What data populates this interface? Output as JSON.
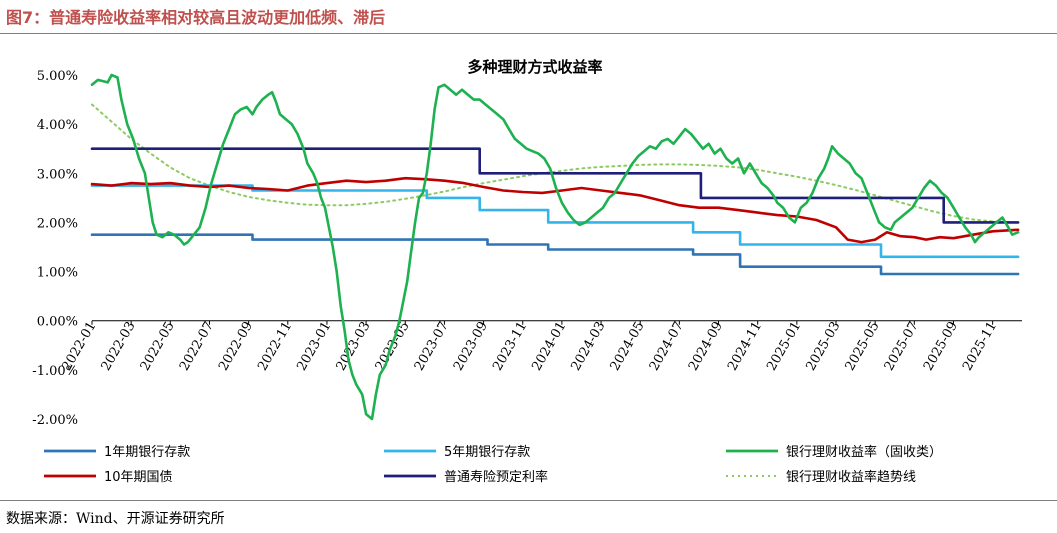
{
  "figure": {
    "title": "图7：普通寿险收益率相对较高且波动更加低频、滞后",
    "source": "数据来源：Wind、开源证券研究所"
  },
  "chart_data": {
    "type": "line",
    "title": "多种理财方式收益率",
    "y_ticks": [
      "5.00%",
      "4.00%",
      "3.00%",
      "2.00%",
      "1.00%",
      "0.00%",
      "-1.00%",
      "-2.00%"
    ],
    "ylim": [
      -2.0,
      5.0
    ],
    "x_ticks": [
      "2022-01",
      "2022-03",
      "2022-05",
      "2022-07",
      "2022-09",
      "2022-11",
      "2023-01",
      "2023-03",
      "2023-05",
      "2023-07",
      "2023-09",
      "2023-11",
      "2024-01",
      "2024-03",
      "2024-05",
      "2024-07",
      "2024-09",
      "2024-11",
      "2025-01",
      "2025-03",
      "2025-05",
      "2025-07",
      "2025-09",
      "2025-11"
    ],
    "x_range_months": [
      0,
      47.5
    ],
    "legend_position": "bottom",
    "grid": false,
    "series": [
      {
        "name": "1年期银行存款",
        "color": "#2e75b6",
        "style": "step",
        "points": [
          [
            0,
            1.75
          ],
          [
            8.2,
            1.75
          ],
          [
            8.2,
            1.65
          ],
          [
            20.2,
            1.65
          ],
          [
            20.2,
            1.55
          ],
          [
            23.3,
            1.55
          ],
          [
            23.3,
            1.45
          ],
          [
            30.7,
            1.45
          ],
          [
            30.7,
            1.35
          ],
          [
            33.1,
            1.35
          ],
          [
            33.1,
            1.1
          ],
          [
            40.3,
            1.1
          ],
          [
            40.3,
            0.95
          ],
          [
            47.3,
            0.95
          ]
        ]
      },
      {
        "name": "5年期银行存款",
        "color": "#33b4ea",
        "style": "step",
        "points": [
          [
            0,
            2.75
          ],
          [
            8.2,
            2.75
          ],
          [
            8.2,
            2.65
          ],
          [
            17.1,
            2.65
          ],
          [
            17.1,
            2.5
          ],
          [
            19.8,
            2.5
          ],
          [
            19.8,
            2.25
          ],
          [
            23.3,
            2.25
          ],
          [
            23.3,
            2.0
          ],
          [
            30.7,
            2.0
          ],
          [
            30.7,
            1.8
          ],
          [
            33.1,
            1.8
          ],
          [
            33.1,
            1.55
          ],
          [
            40.3,
            1.55
          ],
          [
            40.3,
            1.3
          ],
          [
            47.3,
            1.3
          ]
        ]
      },
      {
        "name": "银行理财收益率（固收类）",
        "color": "#1db150",
        "style": "line",
        "points": [
          [
            0,
            4.8
          ],
          [
            0.3,
            4.9
          ],
          [
            0.8,
            4.85
          ],
          [
            1.0,
            5.0
          ],
          [
            1.3,
            4.95
          ],
          [
            1.5,
            4.5
          ],
          [
            1.8,
            4.0
          ],
          [
            2.1,
            3.7
          ],
          [
            2.4,
            3.3
          ],
          [
            2.7,
            3.0
          ],
          [
            2.9,
            2.5
          ],
          [
            3.1,
            2.0
          ],
          [
            3.3,
            1.75
          ],
          [
            3.6,
            1.7
          ],
          [
            3.9,
            1.8
          ],
          [
            4.2,
            1.75
          ],
          [
            4.5,
            1.65
          ],
          [
            4.7,
            1.55
          ],
          [
            4.9,
            1.6
          ],
          [
            5.2,
            1.75
          ],
          [
            5.5,
            1.9
          ],
          [
            5.8,
            2.3
          ],
          [
            6.1,
            2.8
          ],
          [
            6.4,
            3.2
          ],
          [
            6.7,
            3.6
          ],
          [
            7.0,
            3.9
          ],
          [
            7.3,
            4.2
          ],
          [
            7.6,
            4.3
          ],
          [
            7.9,
            4.35
          ],
          [
            8.2,
            4.2
          ],
          [
            8.4,
            4.35
          ],
          [
            8.7,
            4.5
          ],
          [
            9.0,
            4.6
          ],
          [
            9.2,
            4.65
          ],
          [
            9.4,
            4.45
          ],
          [
            9.6,
            4.2
          ],
          [
            9.9,
            4.1
          ],
          [
            10.2,
            4.0
          ],
          [
            10.5,
            3.8
          ],
          [
            10.8,
            3.5
          ],
          [
            11.0,
            3.2
          ],
          [
            11.3,
            3.0
          ],
          [
            11.5,
            2.8
          ],
          [
            11.7,
            2.5
          ],
          [
            11.9,
            2.3
          ],
          [
            12.1,
            1.9
          ],
          [
            12.3,
            1.5
          ],
          [
            12.5,
            1.0
          ],
          [
            12.7,
            0.3
          ],
          [
            12.9,
            -0.2
          ],
          [
            13.1,
            -0.8
          ],
          [
            13.3,
            -1.1
          ],
          [
            13.5,
            -1.3
          ],
          [
            13.8,
            -1.5
          ],
          [
            14.0,
            -1.9
          ],
          [
            14.3,
            -2.0
          ],
          [
            14.5,
            -1.5
          ],
          [
            14.7,
            -1.1
          ],
          [
            15.0,
            -0.9
          ],
          [
            15.2,
            -0.6
          ],
          [
            15.5,
            -0.3
          ],
          [
            15.7,
            0.0
          ],
          [
            15.9,
            0.4
          ],
          [
            16.1,
            0.8
          ],
          [
            16.3,
            1.4
          ],
          [
            16.5,
            2.0
          ],
          [
            16.7,
            2.5
          ],
          [
            16.9,
            2.6
          ],
          [
            17.1,
            3.0
          ],
          [
            17.3,
            3.6
          ],
          [
            17.5,
            4.3
          ],
          [
            17.7,
            4.75
          ],
          [
            18.0,
            4.8
          ],
          [
            18.3,
            4.7
          ],
          [
            18.6,
            4.6
          ],
          [
            18.9,
            4.7
          ],
          [
            19.2,
            4.6
          ],
          [
            19.5,
            4.5
          ],
          [
            19.8,
            4.5
          ],
          [
            20.1,
            4.4
          ],
          [
            20.4,
            4.3
          ],
          [
            20.7,
            4.2
          ],
          [
            21.0,
            4.1
          ],
          [
            21.3,
            3.9
          ],
          [
            21.6,
            3.7
          ],
          [
            21.9,
            3.6
          ],
          [
            22.2,
            3.5
          ],
          [
            22.5,
            3.45
          ],
          [
            22.8,
            3.4
          ],
          [
            23.1,
            3.3
          ],
          [
            23.4,
            3.1
          ],
          [
            23.7,
            2.7
          ],
          [
            24.0,
            2.4
          ],
          [
            24.3,
            2.2
          ],
          [
            24.6,
            2.05
          ],
          [
            24.9,
            1.95
          ],
          [
            25.2,
            2.0
          ],
          [
            25.5,
            2.1
          ],
          [
            25.8,
            2.2
          ],
          [
            26.1,
            2.3
          ],
          [
            26.4,
            2.5
          ],
          [
            26.7,
            2.6
          ],
          [
            27.0,
            2.8
          ],
          [
            27.3,
            3.0
          ],
          [
            27.6,
            3.2
          ],
          [
            27.9,
            3.35
          ],
          [
            28.2,
            3.45
          ],
          [
            28.5,
            3.55
          ],
          [
            28.8,
            3.5
          ],
          [
            29.1,
            3.65
          ],
          [
            29.4,
            3.7
          ],
          [
            29.7,
            3.6
          ],
          [
            30.0,
            3.75
          ],
          [
            30.3,
            3.9
          ],
          [
            30.6,
            3.8
          ],
          [
            30.9,
            3.65
          ],
          [
            31.2,
            3.5
          ],
          [
            31.5,
            3.6
          ],
          [
            31.8,
            3.4
          ],
          [
            32.1,
            3.5
          ],
          [
            32.4,
            3.3
          ],
          [
            32.7,
            3.2
          ],
          [
            33.0,
            3.3
          ],
          [
            33.3,
            3.0
          ],
          [
            33.6,
            3.2
          ],
          [
            33.9,
            3.0
          ],
          [
            34.2,
            2.8
          ],
          [
            34.5,
            2.7
          ],
          [
            34.8,
            2.55
          ],
          [
            35.0,
            2.4
          ],
          [
            35.3,
            2.3
          ],
          [
            35.6,
            2.1
          ],
          [
            35.9,
            2.0
          ],
          [
            36.2,
            2.3
          ],
          [
            36.5,
            2.4
          ],
          [
            36.8,
            2.6
          ],
          [
            37.1,
            2.9
          ],
          [
            37.4,
            3.1
          ],
          [
            37.6,
            3.3
          ],
          [
            37.8,
            3.55
          ],
          [
            38.1,
            3.4
          ],
          [
            38.4,
            3.3
          ],
          [
            38.7,
            3.2
          ],
          [
            39.0,
            3.0
          ],
          [
            39.3,
            2.9
          ],
          [
            39.6,
            2.6
          ],
          [
            39.9,
            2.3
          ],
          [
            40.2,
            2.0
          ],
          [
            40.5,
            1.9
          ],
          [
            40.8,
            1.85
          ],
          [
            41.0,
            2.0
          ],
          [
            41.3,
            2.1
          ],
          [
            41.6,
            2.2
          ],
          [
            41.9,
            2.3
          ],
          [
            42.2,
            2.5
          ],
          [
            42.5,
            2.7
          ],
          [
            42.8,
            2.85
          ],
          [
            43.1,
            2.75
          ],
          [
            43.4,
            2.6
          ],
          [
            43.7,
            2.5
          ],
          [
            44.0,
            2.3
          ],
          [
            44.3,
            2.1
          ],
          [
            44.6,
            1.9
          ],
          [
            44.9,
            1.75
          ],
          [
            45.1,
            1.6
          ],
          [
            45.3,
            1.7
          ],
          [
            45.6,
            1.8
          ],
          [
            45.9,
            1.9
          ],
          [
            46.2,
            2.0
          ],
          [
            46.5,
            2.1
          ],
          [
            46.8,
            1.9
          ],
          [
            47.0,
            1.75
          ],
          [
            47.3,
            1.8
          ]
        ]
      },
      {
        "name": "10年期国债",
        "color": "#c00000",
        "style": "line",
        "points": [
          [
            0,
            2.78
          ],
          [
            1,
            2.75
          ],
          [
            2,
            2.8
          ],
          [
            3,
            2.78
          ],
          [
            4,
            2.8
          ],
          [
            5,
            2.75
          ],
          [
            6,
            2.72
          ],
          [
            7,
            2.75
          ],
          [
            8,
            2.7
          ],
          [
            9,
            2.68
          ],
          [
            10,
            2.65
          ],
          [
            11,
            2.75
          ],
          [
            12,
            2.8
          ],
          [
            13,
            2.85
          ],
          [
            14,
            2.82
          ],
          [
            15,
            2.85
          ],
          [
            16,
            2.9
          ],
          [
            17,
            2.88
          ],
          [
            18,
            2.85
          ],
          [
            19,
            2.8
          ],
          [
            20,
            2.72
          ],
          [
            21,
            2.65
          ],
          [
            22,
            2.62
          ],
          [
            23,
            2.6
          ],
          [
            24,
            2.65
          ],
          [
            25,
            2.7
          ],
          [
            26,
            2.65
          ],
          [
            27,
            2.6
          ],
          [
            28,
            2.55
          ],
          [
            29,
            2.45
          ],
          [
            30,
            2.35
          ],
          [
            31,
            2.3
          ],
          [
            32,
            2.3
          ],
          [
            33,
            2.25
          ],
          [
            34,
            2.2
          ],
          [
            35,
            2.15
          ],
          [
            36,
            2.12
          ],
          [
            37,
            2.05
          ],
          [
            38,
            1.9
          ],
          [
            38.6,
            1.65
          ],
          [
            39.3,
            1.6
          ],
          [
            40,
            1.65
          ],
          [
            40.6,
            1.8
          ],
          [
            41.3,
            1.72
          ],
          [
            42,
            1.7
          ],
          [
            42.6,
            1.65
          ],
          [
            43.3,
            1.7
          ],
          [
            44,
            1.68
          ],
          [
            45,
            1.75
          ],
          [
            46,
            1.82
          ],
          [
            47.3,
            1.85
          ]
        ]
      },
      {
        "name": "普通寿险预定利率",
        "color": "#1f1f7a",
        "style": "step",
        "points": [
          [
            0,
            3.5
          ],
          [
            19.8,
            3.5
          ],
          [
            19.8,
            3.0
          ],
          [
            31.1,
            3.0
          ],
          [
            31.1,
            2.5
          ],
          [
            43.5,
            2.5
          ],
          [
            43.5,
            2.0
          ],
          [
            47.3,
            2.0
          ]
        ]
      },
      {
        "name": "银行理财收益率趋势线",
        "color": "#8bcb61",
        "style": "dotted",
        "points": [
          [
            0,
            4.4
          ],
          [
            1,
            4.05
          ],
          [
            2,
            3.7
          ],
          [
            3,
            3.4
          ],
          [
            4,
            3.12
          ],
          [
            5,
            2.9
          ],
          [
            6,
            2.75
          ],
          [
            7,
            2.62
          ],
          [
            8,
            2.52
          ],
          [
            9,
            2.45
          ],
          [
            10,
            2.4
          ],
          [
            11,
            2.36
          ],
          [
            12,
            2.35
          ],
          [
            13,
            2.35
          ],
          [
            14,
            2.38
          ],
          [
            15,
            2.42
          ],
          [
            16,
            2.48
          ],
          [
            17,
            2.55
          ],
          [
            18,
            2.63
          ],
          [
            19,
            2.72
          ],
          [
            20,
            2.8
          ],
          [
            21,
            2.87
          ],
          [
            22,
            2.94
          ],
          [
            23,
            3.0
          ],
          [
            24,
            3.05
          ],
          [
            25,
            3.1
          ],
          [
            26,
            3.13
          ],
          [
            27,
            3.15
          ],
          [
            28,
            3.17
          ],
          [
            29,
            3.18
          ],
          [
            30,
            3.18
          ],
          [
            31,
            3.17
          ],
          [
            32,
            3.15
          ],
          [
            33,
            3.12
          ],
          [
            34,
            3.07
          ],
          [
            35,
            3.0
          ],
          [
            36,
            2.93
          ],
          [
            37,
            2.85
          ],
          [
            38,
            2.76
          ],
          [
            39,
            2.66
          ],
          [
            40,
            2.55
          ],
          [
            41,
            2.44
          ],
          [
            42,
            2.33
          ],
          [
            43,
            2.22
          ],
          [
            44,
            2.13
          ],
          [
            45,
            2.06
          ],
          [
            46,
            2.02
          ],
          [
            47.3,
            2.0
          ]
        ]
      }
    ]
  }
}
